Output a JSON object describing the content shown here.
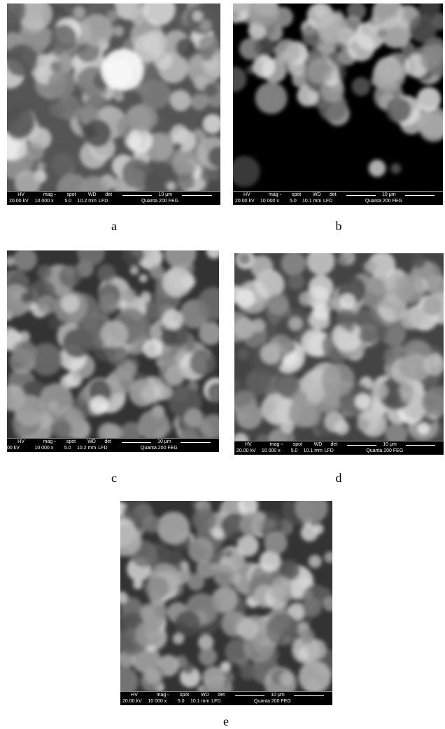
{
  "bar_headers": [
    "HV",
    "mag ▫",
    "spot",
    "WD",
    "det"
  ],
  "panels": [
    {
      "label": "a",
      "hv": "20.00 kV",
      "mag": "10 000 x",
      "spot": "5.0",
      "wd": "10.2 mm",
      "det": "LFD",
      "scale": "10 μm",
      "instrument": "Quanta 200 FEG"
    },
    {
      "label": "b",
      "hv": "20.00 kV",
      "mag": "10 000 x",
      "spot": "5.0",
      "wd": "10.1 mm",
      "det": "LFD",
      "scale": "10 μm",
      "instrument": "Quanta 200 FEG"
    },
    {
      "label": "c",
      "hv": "00 kV",
      "mag": "10 000 x",
      "spot": "5.0",
      "wd": "10.2 mm",
      "det": "LFD",
      "scale": "10 μm",
      "instrument": "Quanta 200 FEG"
    },
    {
      "label": "d",
      "hv": "20.00 kV",
      "mag": "10 000 x",
      "spot": "5.0",
      "wd": "10.1 mm",
      "det": "LFD",
      "scale": "10 μm",
      "instrument": "Quanta 200 FEG"
    },
    {
      "label": "e",
      "hv": "20.00 kV",
      "mag": "10 000 x",
      "spot": "5.0",
      "wd": "10.1 mm",
      "det": "LFD",
      "scale": "10 μm",
      "instrument": "Quanta 200 FEG"
    }
  ]
}
